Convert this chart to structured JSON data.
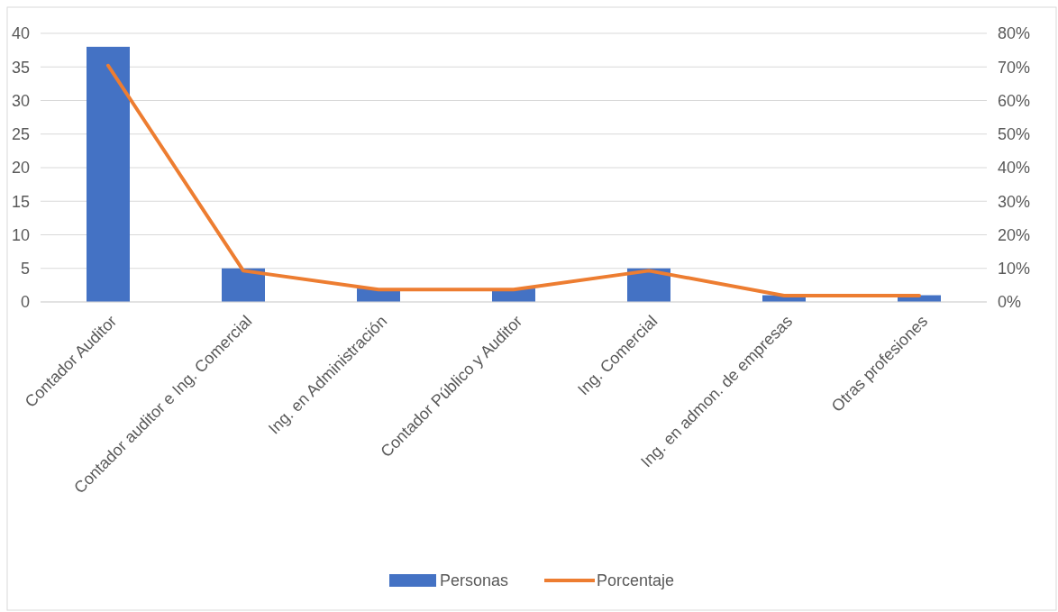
{
  "chart_data": {
    "type": "bar",
    "categories": [
      "Contador Auditor",
      "Contador auditor e Ing. Comercial",
      "Ing. en Administración",
      "Contador Público y Auditor",
      "Ing. Comercial",
      "Ing. en admon. de empresas",
      "Otras profesiones"
    ],
    "series": [
      {
        "name": "Personas",
        "color": "#4472c4",
        "values": [
          38,
          5,
          2,
          2,
          5,
          1,
          1
        ]
      },
      {
        "name": "Porcentaje",
        "type": "line",
        "axis": "y2",
        "color": "#ed7d31",
        "values": [
          70.4,
          9.3,
          3.7,
          3.7,
          9.3,
          1.9,
          1.9
        ]
      }
    ],
    "ylim": [
      0,
      40
    ],
    "yticks": [
      0,
      5,
      10,
      15,
      20,
      25,
      30,
      35,
      40
    ],
    "y2lim": [
      0,
      80
    ],
    "y2ticks": [
      {
        "value": 0,
        "label": "0%"
      },
      {
        "value": 10,
        "label": "10%"
      },
      {
        "value": 20,
        "label": "20%"
      },
      {
        "value": 30,
        "label": "30%"
      },
      {
        "value": 40,
        "label": "40%"
      },
      {
        "value": 50,
        "label": "50%"
      },
      {
        "value": 60,
        "label": "60%"
      },
      {
        "value": 70,
        "label": "70%"
      },
      {
        "value": 80,
        "label": "80%"
      }
    ],
    "grid": "y",
    "legend": "bottom",
    "marker": "none"
  }
}
